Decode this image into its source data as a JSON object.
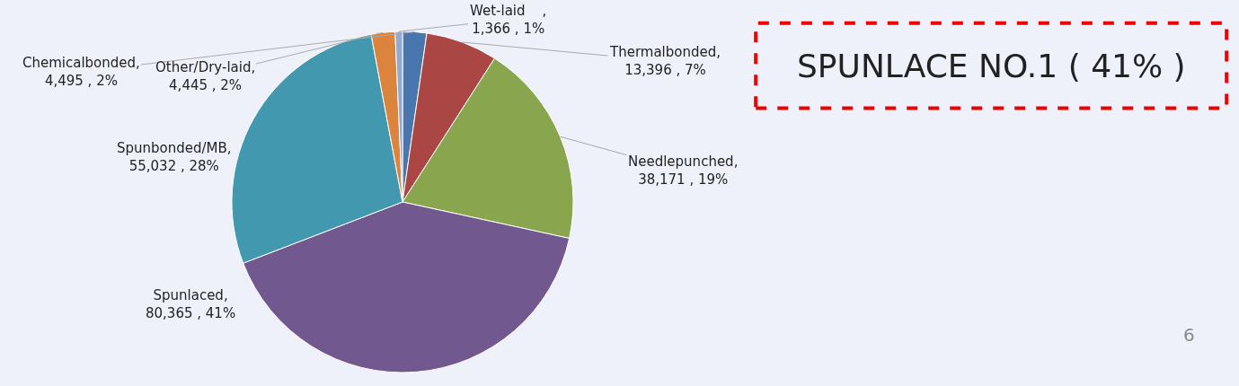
{
  "chart_data": {
    "type": "pie",
    "categories": [
      "Chemicalbonded",
      "Thermalbonded",
      "Needlepunched",
      "Spunlaced",
      "Spunbonded/MB",
      "Other/Dry-laid",
      "Wet-laid    "
    ],
    "values": [
      4495,
      13396,
      38171,
      80365,
      55032,
      4445,
      1366
    ],
    "value_labels": [
      ",\n4,495 , 2%",
      ",\n13,396 , 7%",
      ",\n38,171 , 19%",
      ",\n80,365 , 41%",
      ",\n55,032 , 28%",
      ",\n4,445 , 2%",
      ",\n1,366 , 1%"
    ],
    "colors": [
      "#4a76ae",
      "#aa4643",
      "#89a54e",
      "#71588f",
      "#4198af",
      "#db843d",
      "#93a9cf"
    ],
    "annotations": [
      "SPUNLACE NO.1 ( 41% )",
      "6"
    ],
    "legend": false
  }
}
